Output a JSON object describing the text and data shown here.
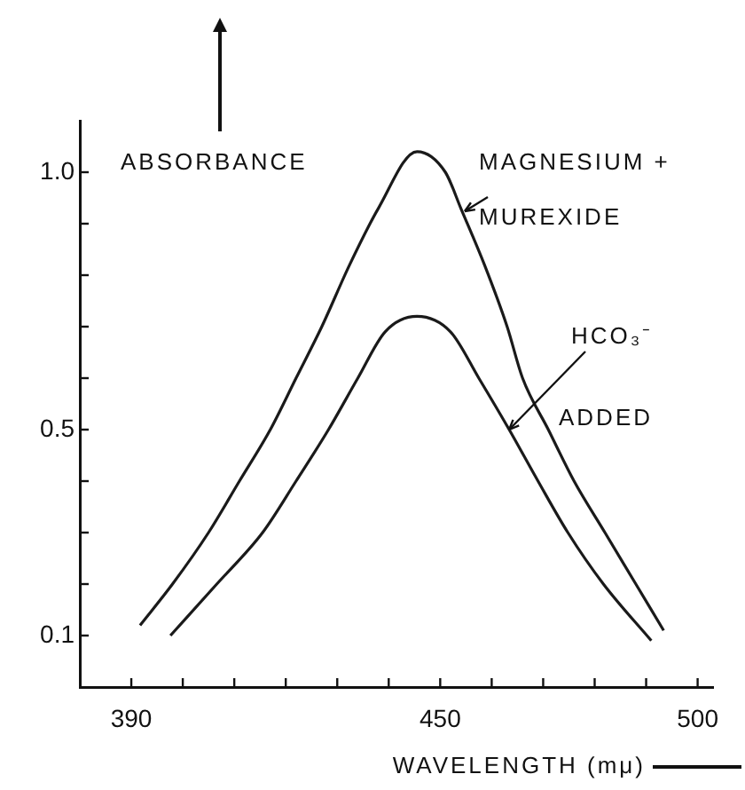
{
  "chart_data": {
    "type": "line",
    "xlabel": "WAVELENGTH (mμ)",
    "ylabel": "ABSORBANCE",
    "series": [
      {
        "color": "#1a1a1a",
        "x": [
          391.7,
          398,
          405,
          411,
          417,
          422,
          427,
          432.4,
          438,
          445.5,
          451,
          454,
          458.6,
          463,
          466,
          471,
          476,
          482,
          488,
          493.4
        ],
        "values": [
          0.12,
          0.2,
          0.3,
          0.4,
          0.5,
          0.6,
          0.7,
          0.82,
          0.93,
          1.04,
          1.0,
          0.93,
          0.82,
          0.7,
          0.6,
          0.5,
          0.4,
          0.3,
          0.2,
          0.11
        ]
      },
      {
        "color": "#1a1a1a",
        "x": [
          397.6,
          406.6,
          415.5,
          422,
          428.3,
          434,
          439.3,
          445.5,
          452,
          457.5,
          463.4,
          469,
          474.8,
          481.7,
          491
        ],
        "values": [
          0.1,
          0.2,
          0.3,
          0.4,
          0.5,
          0.6,
          0.69,
          0.72,
          0.69,
          0.6,
          0.5,
          0.4,
          0.3,
          0.2,
          0.09
        ]
      }
    ],
    "xlim": [
      380,
      503
    ],
    "xticks": [
      390,
      {
        "value": 400,
        "label": null
      },
      {
        "value": 410,
        "label": null
      },
      {
        "value": 420,
        "label": null
      },
      {
        "value": 430,
        "label": null
      },
      {
        "value": 440,
        "label": null
      },
      450,
      {
        "value": 460,
        "label": null
      },
      {
        "value": 470,
        "label": null
      },
      {
        "value": 480,
        "label": null
      },
      {
        "value": 490,
        "label": null
      },
      500
    ],
    "ylim": [
      0,
      1.1
    ],
    "yticks": [
      0.1,
      {
        "value": 0.2,
        "label": null
      },
      {
        "value": 0.3,
        "label": null
      },
      {
        "value": 0.4,
        "label": null
      },
      0.5,
      {
        "value": 0.6,
        "label": null
      },
      {
        "value": 0.7,
        "label": null
      },
      {
        "value": 0.8,
        "label": null
      },
      {
        "value": 0.9,
        "label": null
      },
      {
        "value": 1,
        "label": "1.0"
      }
    ],
    "annotations": [
      "MAGNESIUM +",
      "MUREXIDE",
      {
        "text": "HCO₃⁻",
        "x": 463.4,
        "y": 0.5
      },
      "ADDED"
    ],
    "grid": false,
    "legend": false,
    "marker": "none",
    "line_style": "solid"
  }
}
